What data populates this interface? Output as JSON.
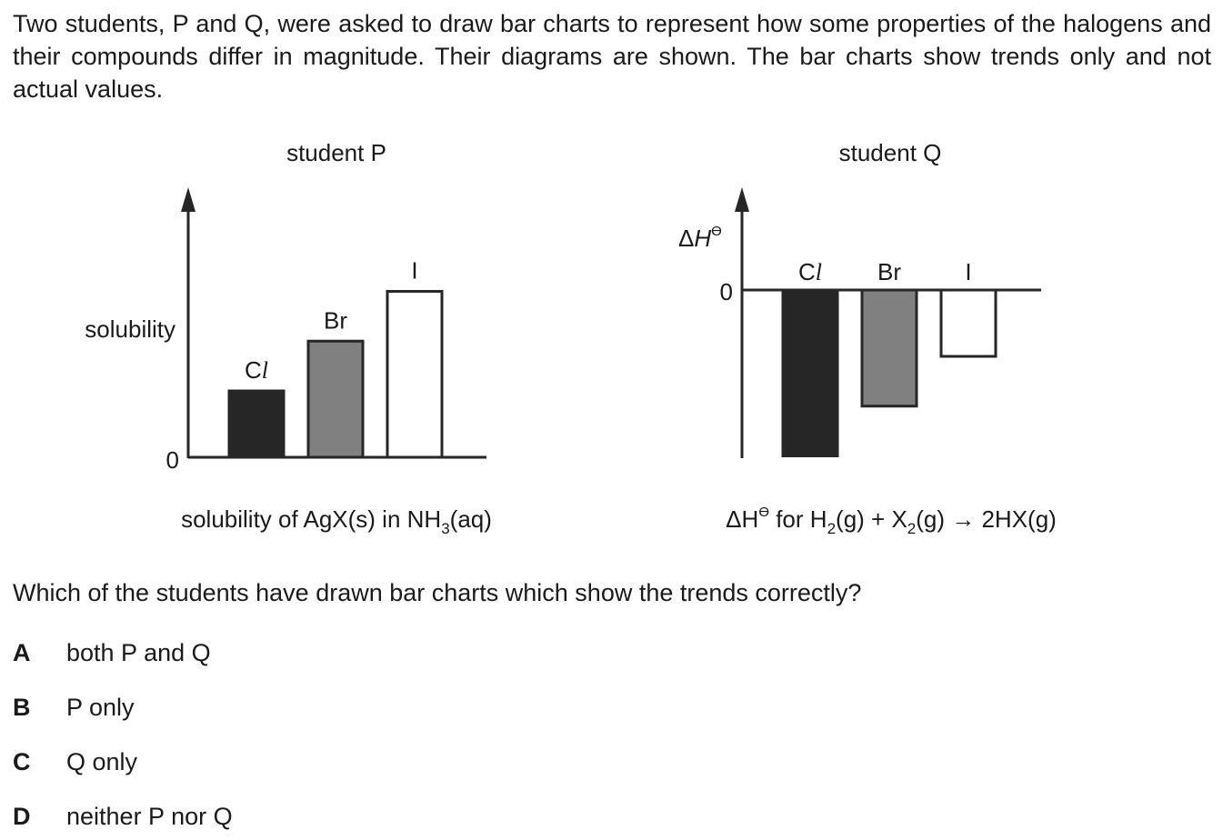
{
  "question": {
    "intro": "Two students, P and Q, were asked to draw bar charts to represent how some properties of the halogens and their compounds differ in magnitude. Their diagrams are shown. The bar charts show trends only and not actual values.",
    "stem": "Which of the students have drawn bar charts which show the trends correctly?",
    "options": [
      {
        "letter": "A",
        "text": "both P and Q"
      },
      {
        "letter": "B",
        "text": "P only"
      },
      {
        "letter": "C",
        "text": "Q only"
      },
      {
        "letter": "D",
        "text": "neither P nor Q"
      }
    ]
  },
  "colors": {
    "cl_fill": "#262626",
    "br_fill": "#808080",
    "i_fill": "#ffffff",
    "axis": "#262626"
  },
  "chart_data": [
    {
      "type": "bar",
      "title": "student P",
      "ylabel": "solubility",
      "ytick": "0",
      "xlabel_parts": [
        "solubility of AgX(s) in NH",
        "3",
        "(aq)"
      ],
      "categories": [
        "Cl",
        "Br",
        "I"
      ],
      "values": [
        1,
        1.75,
        2.5
      ],
      "ylim": [
        0,
        4
      ],
      "note": "relative trend only"
    },
    {
      "type": "bar",
      "title": "student Q",
      "ylabel": "ΔH",
      "ylabel_sup": "ϴ",
      "ytick": "0",
      "xlabel_parts": [
        "ΔH",
        "ϴ",
        " for H",
        "2",
        "(g)  +  X",
        "2",
        "(g)  →  2HX(g)"
      ],
      "categories": [
        "Cl",
        "Br",
        "I"
      ],
      "values": [
        -2.5,
        -1.75,
        -1
      ],
      "ylim": [
        -2.5,
        2.7
      ]
    }
  ]
}
